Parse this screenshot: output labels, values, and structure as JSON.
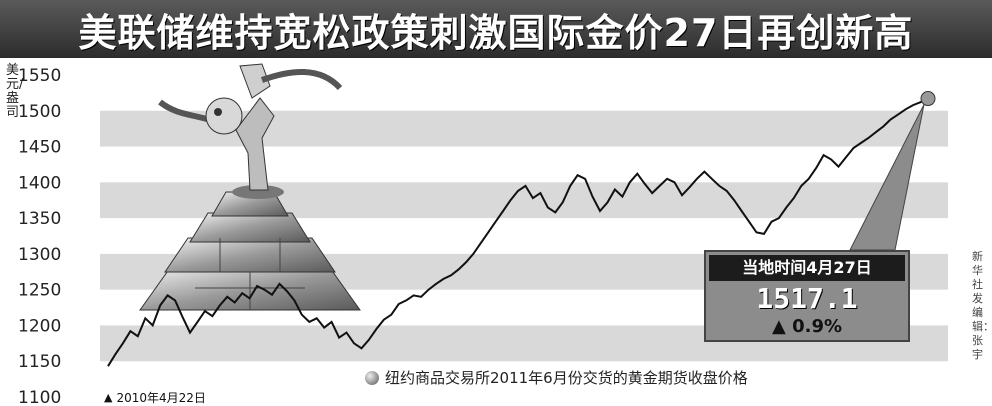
{
  "title": "美联储维持宽松政策刺激国际金价27日再创新高",
  "unit_label": "美元/盎司",
  "callout": {
    "date_label": "当地时间4月27日",
    "value": "1517.1",
    "change": "▲ 0.9%"
  },
  "note": "纽约商品交易所2011年6月份交货的黄金期货收盘价格",
  "start_label": "2010年4月22日",
  "credit": "新华社发 编辑：张宇",
  "colors": {
    "title_bg": "#3a3a3a",
    "band": "#d9d9d9",
    "line": "#111111",
    "callout_bg": "#8c8c8c"
  },
  "illustration": "gold-bars-with-dancing-figure",
  "chart_data": {
    "type": "line",
    "title": "美联储维持宽松政策刺激国际金价27日再创新高",
    "ylabel": "美元/盎司",
    "ylim": [
      1100,
      1550
    ],
    "yticks": [
      1100,
      1150,
      1200,
      1250,
      1300,
      1350,
      1400,
      1450,
      1500,
      1550
    ],
    "x_start": "2010年4月22日",
    "x_end": "2011年4月27日",
    "grid": "alternating-bands",
    "series": [
      {
        "values": [
          1143,
          1160,
          1175,
          1192,
          1185,
          1210,
          1200,
          1228,
          1242,
          1235,
          1212,
          1190,
          1205,
          1220,
          1213,
          1228,
          1240,
          1232,
          1245,
          1238,
          1255,
          1250,
          1243,
          1258,
          1248,
          1235,
          1215,
          1205,
          1210,
          1197,
          1205,
          1183,
          1190,
          1175,
          1168,
          1180,
          1195,
          1208,
          1215,
          1230,
          1235,
          1242,
          1240,
          1250,
          1258,
          1265,
          1270,
          1278,
          1288,
          1300,
          1315,
          1330,
          1345,
          1360,
          1375,
          1388,
          1395,
          1378,
          1385,
          1365,
          1358,
          1372,
          1395,
          1410,
          1405,
          1380,
          1360,
          1372,
          1390,
          1380,
          1400,
          1412,
          1398,
          1385,
          1395,
          1405,
          1400,
          1382,
          1393,
          1405,
          1415,
          1405,
          1395,
          1388,
          1375,
          1360,
          1345,
          1330,
          1328,
          1345,
          1350,
          1365,
          1378,
          1395,
          1405,
          1420,
          1438,
          1432,
          1422,
          1435,
          1448,
          1455,
          1462,
          1470,
          1478,
          1488,
          1495,
          1502,
          1508,
          1512,
          1517.1
        ]
      }
    ],
    "annotations": [
      {
        "label": "当地时间4月27日",
        "value": 1517.1,
        "change": "0.9%"
      }
    ]
  }
}
